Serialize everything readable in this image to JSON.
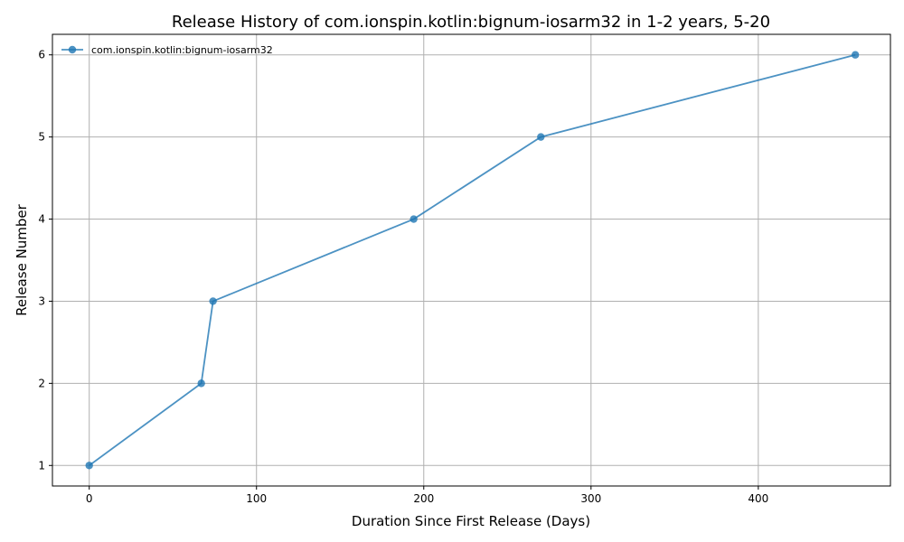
{
  "chart_data": {
    "type": "line",
    "title": "Release History of com.ionspin.kotlin:bignum-iosarm32 in 1-2 years, 5-20",
    "xlabel": "Duration Since First Release (Days)",
    "ylabel": "Release Number",
    "xlim": [
      -22,
      479
    ],
    "ylim": [
      0.75,
      6.25
    ],
    "xticks": [
      0,
      100,
      200,
      300,
      400
    ],
    "yticks": [
      1,
      2,
      3,
      4,
      5,
      6
    ],
    "grid": true,
    "legend_position": "top-left",
    "series": [
      {
        "name": "com.ionspin.kotlin:bignum-iosarm32",
        "color": "#1f77b4",
        "marker": "circle",
        "x": [
          0,
          67,
          74,
          194,
          270,
          458
        ],
        "y": [
          1,
          2,
          3,
          4,
          5,
          6
        ]
      }
    ]
  }
}
